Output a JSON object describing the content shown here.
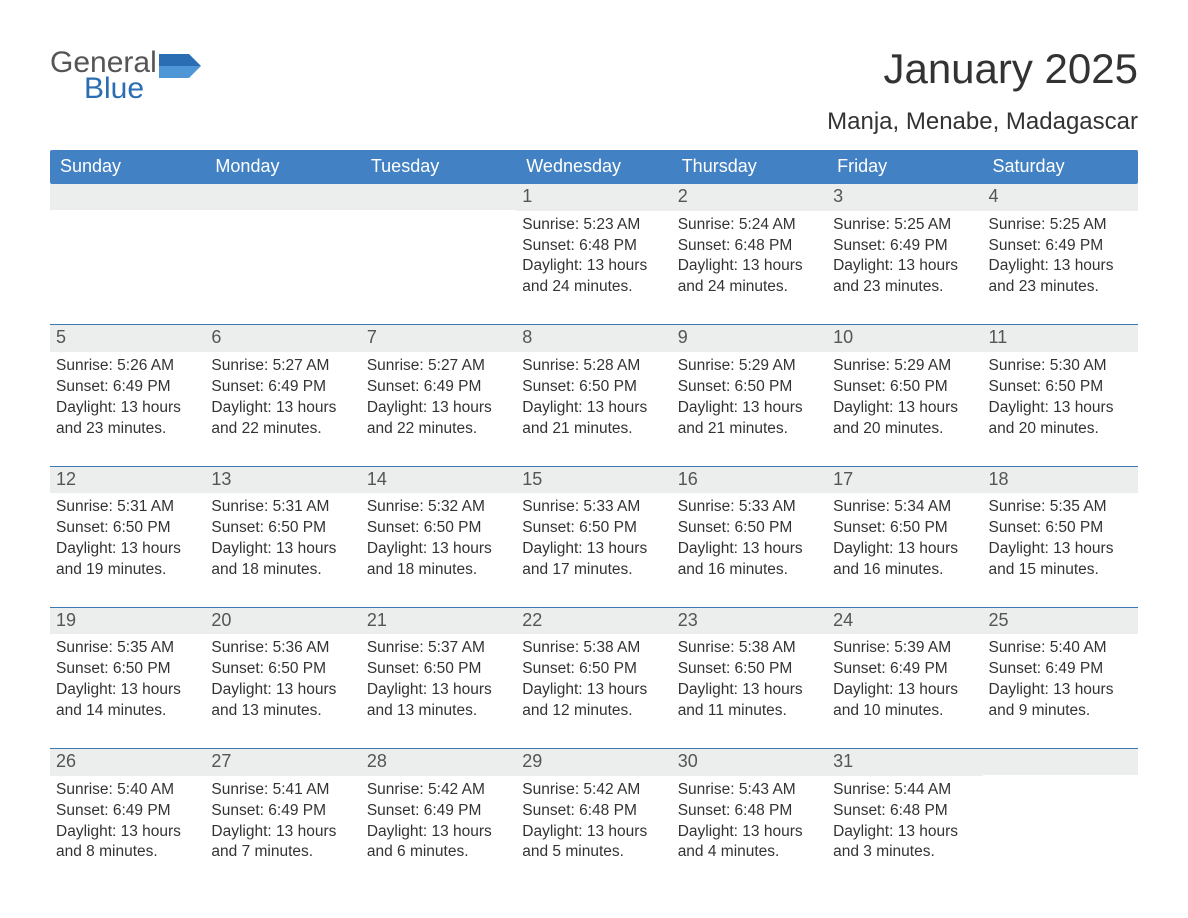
{
  "logo": {
    "word1": "General",
    "word2": "Blue"
  },
  "title": "January 2025",
  "location": "Manja, Menabe, Madagascar",
  "colors": {
    "header_bg": "#4281c3",
    "accent_blue": "#2a6db3",
    "date_bg": "#eceded",
    "border_blue": "#3b78b5",
    "text": "#333333",
    "background": "#ffffff"
  },
  "weekdays": [
    "Sunday",
    "Monday",
    "Tuesday",
    "Wednesday",
    "Thursday",
    "Friday",
    "Saturday"
  ],
  "labels": {
    "sunrise": "Sunrise: ",
    "sunset": "Sunset: ",
    "daylight": "Daylight: "
  },
  "weeks": [
    [
      {
        "empty": true
      },
      {
        "empty": true
      },
      {
        "empty": true
      },
      {
        "date": "1",
        "sunrise": "5:23 AM",
        "sunset": "6:48 PM",
        "daylight": "13 hours and 24 minutes."
      },
      {
        "date": "2",
        "sunrise": "5:24 AM",
        "sunset": "6:48 PM",
        "daylight": "13 hours and 24 minutes."
      },
      {
        "date": "3",
        "sunrise": "5:25 AM",
        "sunset": "6:49 PM",
        "daylight": "13 hours and 23 minutes."
      },
      {
        "date": "4",
        "sunrise": "5:25 AM",
        "sunset": "6:49 PM",
        "daylight": "13 hours and 23 minutes."
      }
    ],
    [
      {
        "date": "5",
        "sunrise": "5:26 AM",
        "sunset": "6:49 PM",
        "daylight": "13 hours and 23 minutes."
      },
      {
        "date": "6",
        "sunrise": "5:27 AM",
        "sunset": "6:49 PM",
        "daylight": "13 hours and 22 minutes."
      },
      {
        "date": "7",
        "sunrise": "5:27 AM",
        "sunset": "6:49 PM",
        "daylight": "13 hours and 22 minutes."
      },
      {
        "date": "8",
        "sunrise": "5:28 AM",
        "sunset": "6:50 PM",
        "daylight": "13 hours and 21 minutes."
      },
      {
        "date": "9",
        "sunrise": "5:29 AM",
        "sunset": "6:50 PM",
        "daylight": "13 hours and 21 minutes."
      },
      {
        "date": "10",
        "sunrise": "5:29 AM",
        "sunset": "6:50 PM",
        "daylight": "13 hours and 20 minutes."
      },
      {
        "date": "11",
        "sunrise": "5:30 AM",
        "sunset": "6:50 PM",
        "daylight": "13 hours and 20 minutes."
      }
    ],
    [
      {
        "date": "12",
        "sunrise": "5:31 AM",
        "sunset": "6:50 PM",
        "daylight": "13 hours and 19 minutes."
      },
      {
        "date": "13",
        "sunrise": "5:31 AM",
        "sunset": "6:50 PM",
        "daylight": "13 hours and 18 minutes."
      },
      {
        "date": "14",
        "sunrise": "5:32 AM",
        "sunset": "6:50 PM",
        "daylight": "13 hours and 18 minutes."
      },
      {
        "date": "15",
        "sunrise": "5:33 AM",
        "sunset": "6:50 PM",
        "daylight": "13 hours and 17 minutes."
      },
      {
        "date": "16",
        "sunrise": "5:33 AM",
        "sunset": "6:50 PM",
        "daylight": "13 hours and 16 minutes."
      },
      {
        "date": "17",
        "sunrise": "5:34 AM",
        "sunset": "6:50 PM",
        "daylight": "13 hours and 16 minutes."
      },
      {
        "date": "18",
        "sunrise": "5:35 AM",
        "sunset": "6:50 PM",
        "daylight": "13 hours and 15 minutes."
      }
    ],
    [
      {
        "date": "19",
        "sunrise": "5:35 AM",
        "sunset": "6:50 PM",
        "daylight": "13 hours and 14 minutes."
      },
      {
        "date": "20",
        "sunrise": "5:36 AM",
        "sunset": "6:50 PM",
        "daylight": "13 hours and 13 minutes."
      },
      {
        "date": "21",
        "sunrise": "5:37 AM",
        "sunset": "6:50 PM",
        "daylight": "13 hours and 13 minutes."
      },
      {
        "date": "22",
        "sunrise": "5:38 AM",
        "sunset": "6:50 PM",
        "daylight": "13 hours and 12 minutes."
      },
      {
        "date": "23",
        "sunrise": "5:38 AM",
        "sunset": "6:50 PM",
        "daylight": "13 hours and 11 minutes."
      },
      {
        "date": "24",
        "sunrise": "5:39 AM",
        "sunset": "6:49 PM",
        "daylight": "13 hours and 10 minutes."
      },
      {
        "date": "25",
        "sunrise": "5:40 AM",
        "sunset": "6:49 PM",
        "daylight": "13 hours and 9 minutes."
      }
    ],
    [
      {
        "date": "26",
        "sunrise": "5:40 AM",
        "sunset": "6:49 PM",
        "daylight": "13 hours and 8 minutes."
      },
      {
        "date": "27",
        "sunrise": "5:41 AM",
        "sunset": "6:49 PM",
        "daylight": "13 hours and 7 minutes."
      },
      {
        "date": "28",
        "sunrise": "5:42 AM",
        "sunset": "6:49 PM",
        "daylight": "13 hours and 6 minutes."
      },
      {
        "date": "29",
        "sunrise": "5:42 AM",
        "sunset": "6:48 PM",
        "daylight": "13 hours and 5 minutes."
      },
      {
        "date": "30",
        "sunrise": "5:43 AM",
        "sunset": "6:48 PM",
        "daylight": "13 hours and 4 minutes."
      },
      {
        "date": "31",
        "sunrise": "5:44 AM",
        "sunset": "6:48 PM",
        "daylight": "13 hours and 3 minutes."
      },
      {
        "empty": true
      }
    ]
  ]
}
